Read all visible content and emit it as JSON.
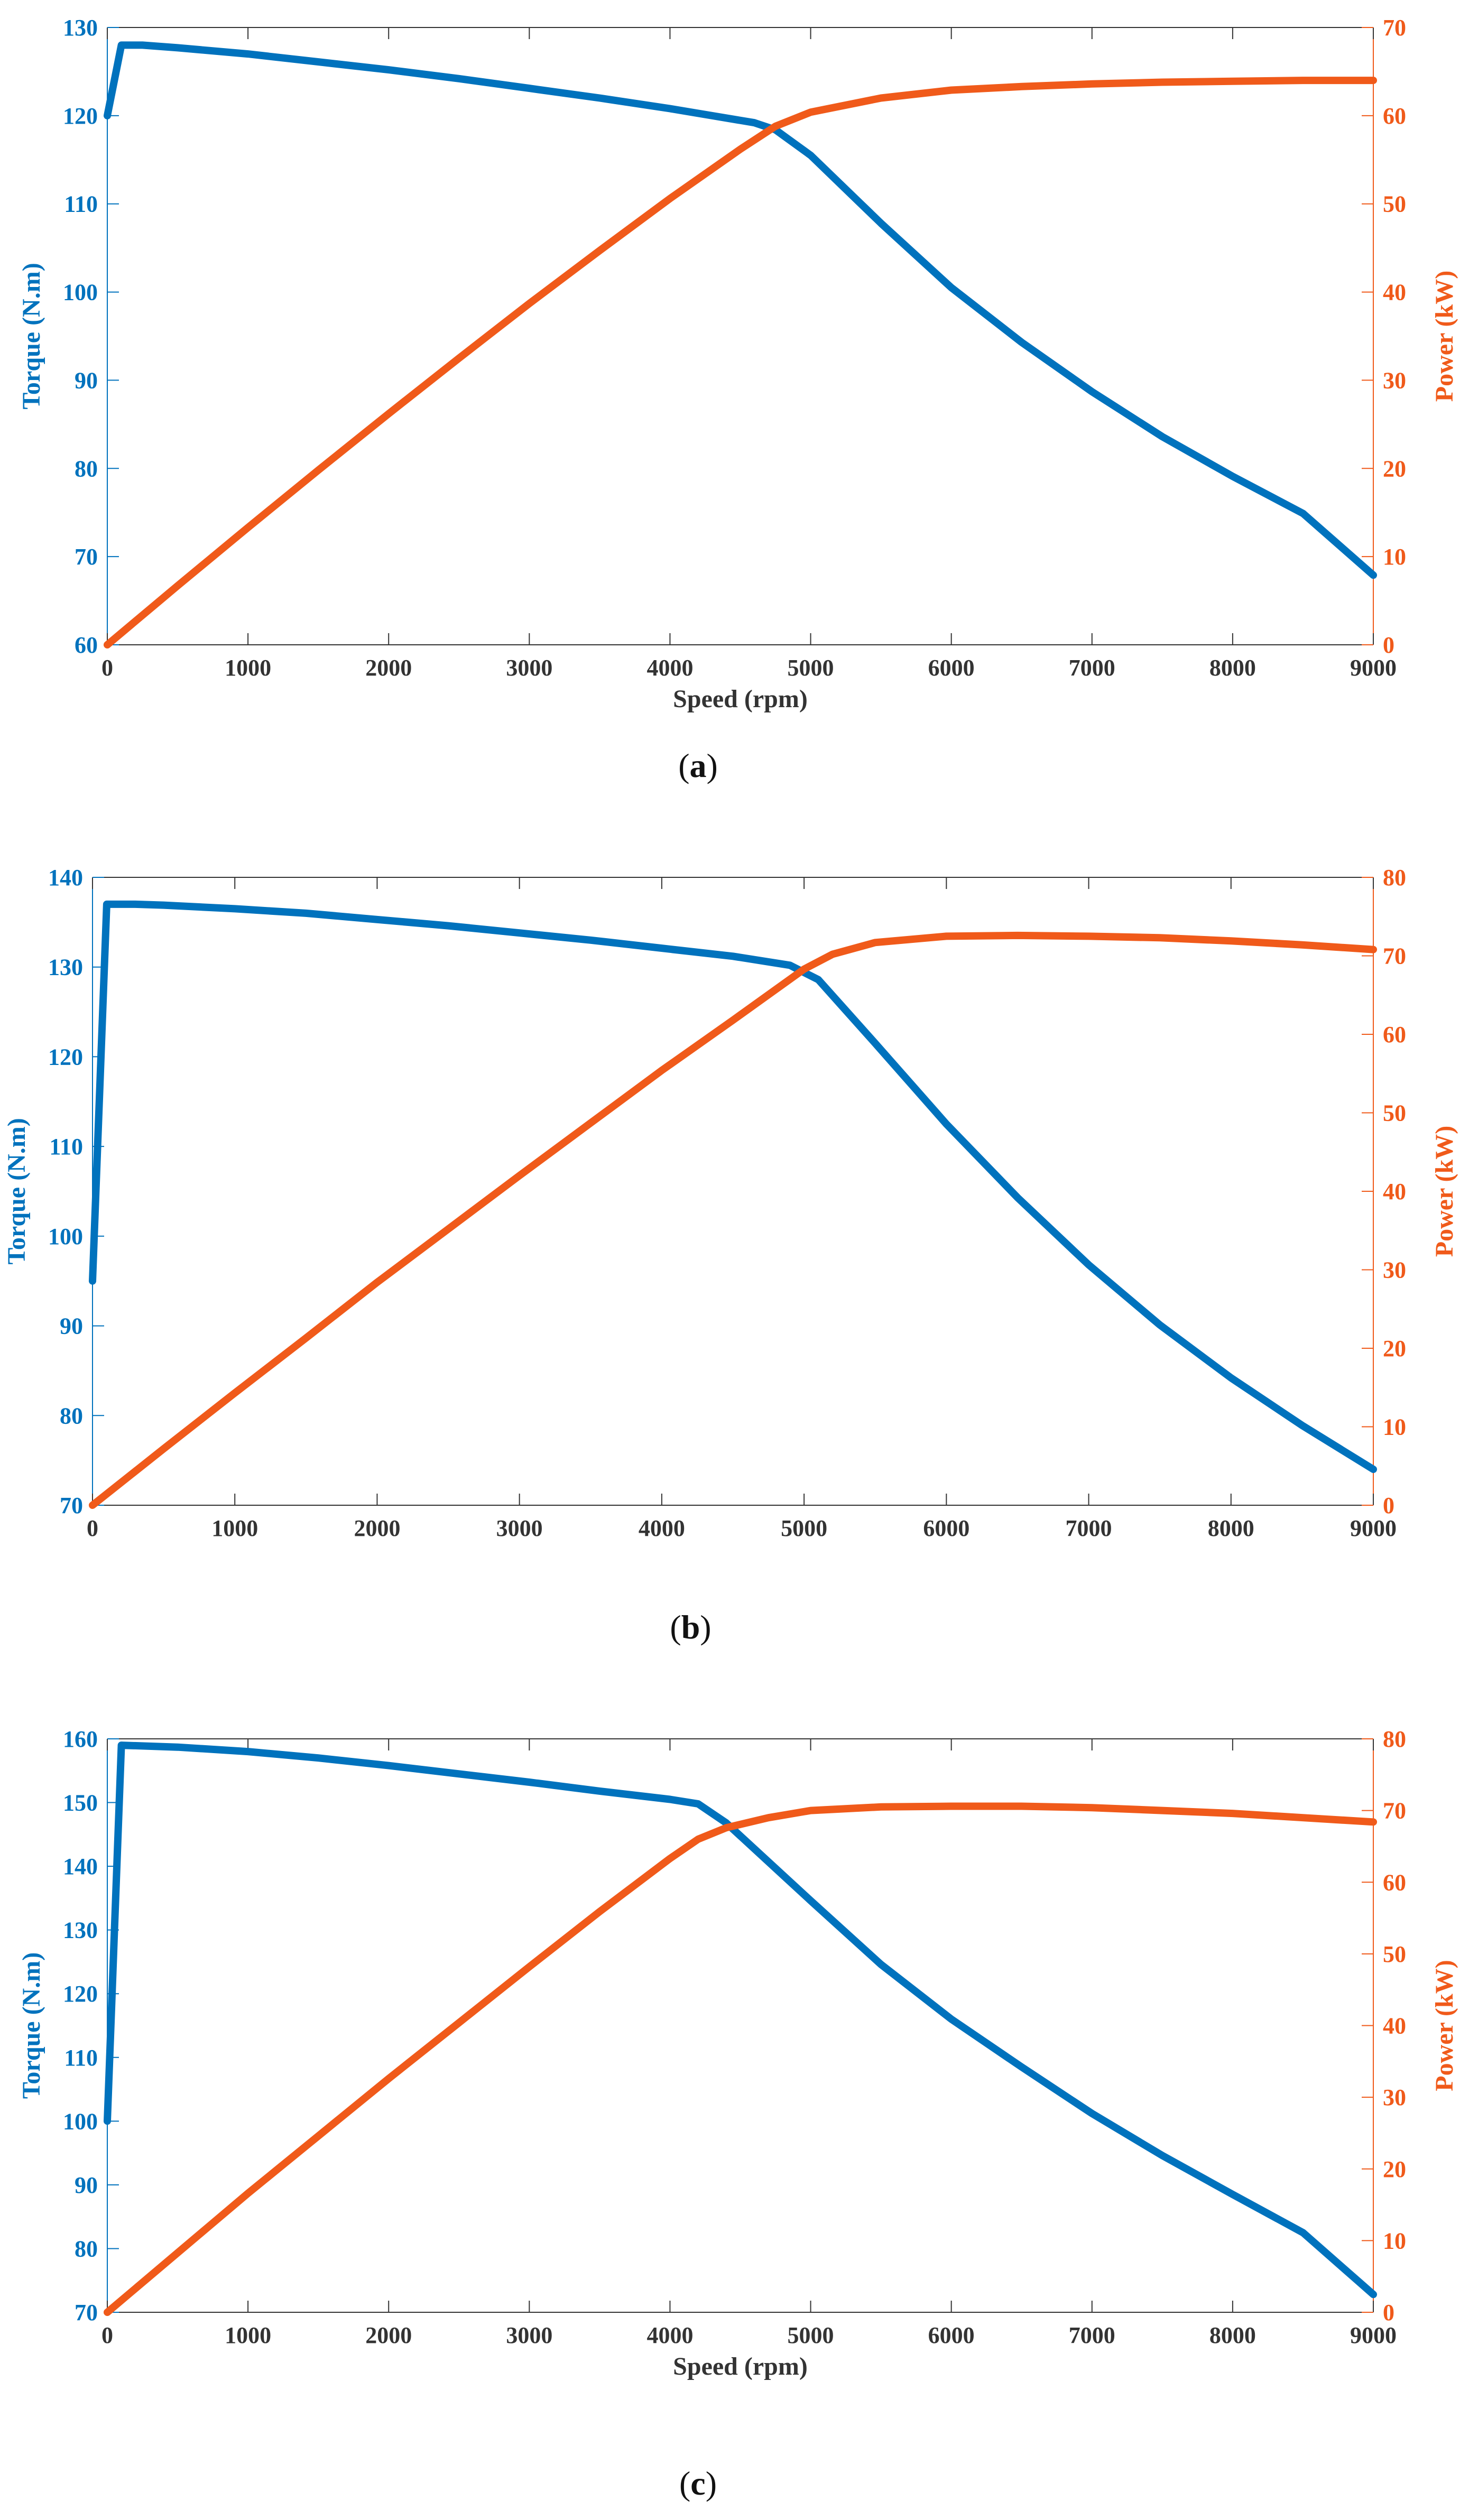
{
  "colors": {
    "torque": "#0072BD",
    "power": "#F05A1A",
    "axis": "#333333"
  },
  "chart_data": [
    {
      "type": "line",
      "caption_open": "(",
      "caption_letter": "a",
      "caption_close": ")",
      "xlabel": "Speed (rpm)",
      "ylabel_left": "Torque (N.m)",
      "ylabel_right": "Power (kW)",
      "xlim": [
        0,
        9000
      ],
      "ylim_left": [
        60,
        130
      ],
      "ylim_right": [
        0,
        70
      ],
      "xticks": [
        0,
        1000,
        2000,
        3000,
        4000,
        5000,
        6000,
        7000,
        8000,
        9000
      ],
      "yticks_left": [
        60,
        70,
        80,
        90,
        100,
        110,
        120,
        130
      ],
      "yticks_right": [
        0,
        10,
        20,
        30,
        40,
        50,
        60,
        70
      ],
      "series": [
        {
          "name": "Torque",
          "axis": "left",
          "x": [
            0,
            100,
            250,
            500,
            1000,
            1500,
            2000,
            2500,
            3000,
            3500,
            4000,
            4300,
            4600,
            4750,
            5000,
            5500,
            6000,
            6500,
            7000,
            7500,
            8000,
            8500,
            9000
          ],
          "y": [
            120,
            128,
            128,
            127.7,
            127.0,
            126.1,
            125.2,
            124.2,
            123.1,
            122.0,
            120.8,
            120.0,
            119.2,
            118.4,
            115.5,
            107.8,
            100.5,
            94.3,
            88.7,
            83.6,
            79.1,
            74.9,
            67.9
          ]
        },
        {
          "name": "Power",
          "axis": "right",
          "x": [
            0,
            500,
            1000,
            1500,
            2000,
            2500,
            3000,
            3500,
            4000,
            4500,
            4750,
            5000,
            5500,
            6000,
            6500,
            7000,
            7500,
            8000,
            8500,
            9000
          ],
          "y": [
            0,
            6.7,
            13.3,
            19.8,
            26.2,
            32.5,
            38.7,
            44.7,
            50.6,
            56.2,
            58.8,
            60.4,
            62.0,
            62.9,
            63.3,
            63.6,
            63.8,
            63.9,
            64.0,
            64.0
          ]
        }
      ]
    },
    {
      "type": "line",
      "caption_open": "(",
      "caption_letter": "b",
      "caption_close": ")",
      "xlabel": "",
      "ylabel_left": "Torque (N.m)",
      "ylabel_right": "Power (kW)",
      "xlim": [
        0,
        9000
      ],
      "ylim_left": [
        70,
        140
      ],
      "ylim_right": [
        0,
        80
      ],
      "xticks": [
        0,
        1000,
        2000,
        3000,
        4000,
        5000,
        6000,
        7000,
        8000,
        9000
      ],
      "yticks_left": [
        70,
        80,
        90,
        100,
        110,
        120,
        130,
        140
      ],
      "yticks_right": [
        0,
        10,
        20,
        30,
        40,
        50,
        60,
        70,
        80
      ],
      "series": [
        {
          "name": "Torque",
          "axis": "left",
          "x": [
            0,
            100,
            300,
            500,
            1000,
            1500,
            2000,
            2500,
            3000,
            3500,
            4000,
            4500,
            4900,
            5100,
            5500,
            6000,
            6500,
            7000,
            7500,
            8000,
            8500,
            9000
          ],
          "y": [
            95,
            137,
            137,
            136.9,
            136.5,
            136.0,
            135.3,
            134.6,
            133.8,
            133.0,
            132.1,
            131.2,
            130.2,
            128.6,
            121.5,
            112.5,
            104.3,
            96.8,
            90.1,
            84.2,
            78.9,
            74.0
          ]
        },
        {
          "name": "Power",
          "axis": "right",
          "x": [
            0,
            500,
            1000,
            1500,
            2000,
            2500,
            3000,
            3500,
            4000,
            4500,
            5000,
            5200,
            5500,
            6000,
            6500,
            7000,
            7500,
            8000,
            8500,
            9000
          ],
          "y": [
            0,
            7.2,
            14.3,
            21.3,
            28.4,
            35.2,
            42.0,
            48.7,
            55.4,
            61.8,
            68.3,
            70.2,
            71.7,
            72.5,
            72.6,
            72.5,
            72.3,
            71.9,
            71.4,
            70.8
          ]
        }
      ]
    },
    {
      "type": "line",
      "caption_open": "(",
      "caption_letter": "c",
      "caption_close": ")",
      "xlabel": "Speed (rpm)",
      "ylabel_left": "Torque (N.m)",
      "ylabel_right": "Power (kW)",
      "xlim": [
        0,
        9000
      ],
      "ylim_left": [
        70,
        160
      ],
      "ylim_right": [
        0,
        80
      ],
      "xticks": [
        0,
        1000,
        2000,
        3000,
        4000,
        5000,
        6000,
        7000,
        8000,
        9000
      ],
      "yticks_left": [
        70,
        80,
        90,
        100,
        110,
        120,
        130,
        140,
        150,
        160
      ],
      "yticks_right": [
        0,
        10,
        20,
        30,
        40,
        50,
        60,
        70,
        80
      ],
      "series": [
        {
          "name": "Torque",
          "axis": "left",
          "x": [
            0,
            100,
            500,
            1000,
            1500,
            2000,
            2500,
            3000,
            3500,
            4000,
            4200,
            4400,
            5000,
            5500,
            6000,
            6500,
            7000,
            7500,
            8000,
            8500,
            9000
          ],
          "y": [
            100,
            159,
            158.7,
            158.0,
            157.0,
            155.8,
            154.5,
            153.2,
            151.8,
            150.5,
            149.8,
            146.8,
            134.6,
            124.6,
            116.0,
            108.5,
            101.2,
            94.6,
            88.5,
            82.5,
            72.8
          ]
        },
        {
          "name": "Power",
          "axis": "right",
          "x": [
            0,
            500,
            1000,
            1500,
            2000,
            2500,
            3000,
            3500,
            4000,
            4200,
            4400,
            4700,
            5000,
            5500,
            6000,
            6500,
            7000,
            7500,
            8000,
            8500,
            9000
          ],
          "y": [
            0,
            8.3,
            16.6,
            24.6,
            32.6,
            40.4,
            48.2,
            55.9,
            63.3,
            66.0,
            67.6,
            69.0,
            70.0,
            70.5,
            70.6,
            70.6,
            70.4,
            70.0,
            69.6,
            69.0,
            68.4
          ]
        }
      ]
    }
  ]
}
